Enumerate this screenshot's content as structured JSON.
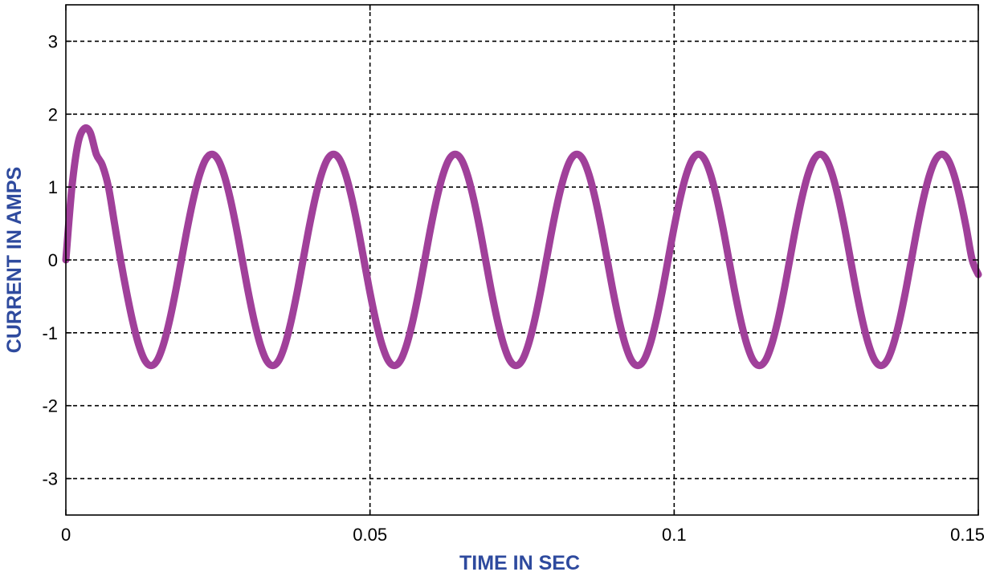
{
  "chart_data": {
    "type": "line",
    "xlabel": "TIME IN SEC",
    "ylabel": "CURRENT IN AMPS",
    "xlim": [
      0,
      0.15
    ],
    "ylim": [
      -3.5,
      3.5
    ],
    "xticks": [
      0,
      0.05,
      0.1,
      0.15
    ],
    "xtick_labels": [
      "0",
      "0.05",
      "0.1",
      "0.15"
    ],
    "yticks": [
      -3,
      -2,
      -1,
      0,
      1,
      2,
      3
    ],
    "ytick_labels": [
      "-3",
      "-2",
      "-1",
      "0",
      "1",
      "2",
      "3"
    ],
    "grid": true,
    "series": [
      {
        "x": [
          0,
          0.001,
          0.002,
          0.003,
          0.004,
          0.005,
          0.006,
          0.007,
          0.008,
          0.009,
          0.01,
          0.011,
          0.012,
          0.013,
          0.014,
          0.015,
          0.016,
          0.017,
          0.018,
          0.019,
          0.02,
          0.021,
          0.022,
          0.023,
          0.024,
          0.025,
          0.026,
          0.027,
          0.028,
          0.029,
          0.03,
          0.031,
          0.032,
          0.033,
          0.034,
          0.035,
          0.036,
          0.037,
          0.038,
          0.039,
          0.04,
          0.041,
          0.042,
          0.043,
          0.044,
          0.045,
          0.046,
          0.047,
          0.048,
          0.049,
          0.05,
          0.051,
          0.052,
          0.053,
          0.054,
          0.055,
          0.056,
          0.057,
          0.058,
          0.059,
          0.06,
          0.061,
          0.062,
          0.063,
          0.064,
          0.065,
          0.066,
          0.067,
          0.068,
          0.069,
          0.07,
          0.071,
          0.072,
          0.073,
          0.074,
          0.075,
          0.076,
          0.077,
          0.078,
          0.079,
          0.08,
          0.081,
          0.082,
          0.083,
          0.084,
          0.085,
          0.086,
          0.087,
          0.088,
          0.089,
          0.09,
          0.091,
          0.092,
          0.093,
          0.094,
          0.095,
          0.096,
          0.097,
          0.098,
          0.099,
          0.1,
          0.101,
          0.102,
          0.103,
          0.104,
          0.105,
          0.106,
          0.107,
          0.108,
          0.109,
          0.11,
          0.111,
          0.112,
          0.113,
          0.114,
          0.115,
          0.116,
          0.117,
          0.118,
          0.119,
          0.12,
          0.121,
          0.122,
          0.123,
          0.124,
          0.125,
          0.126,
          0.127,
          0.128,
          0.129,
          0.13,
          0.131,
          0.132,
          0.133,
          0.134,
          0.135,
          0.136,
          0.137,
          0.138,
          0.139,
          0.14,
          0.141,
          0.142,
          0.143,
          0.144,
          0.145,
          0.146,
          0.147,
          0.148,
          0.149,
          0.15
        ],
        "y": [
          0.0,
          1.0,
          1.6,
          1.8,
          1.75,
          1.45,
          1.3,
          1.0,
          0.5,
          0.0,
          -0.45,
          -0.85,
          -1.17,
          -1.38,
          -1.45,
          -1.38,
          -1.17,
          -0.85,
          -0.45,
          0.0,
          0.45,
          0.85,
          1.17,
          1.38,
          1.45,
          1.38,
          1.17,
          0.85,
          0.45,
          0.0,
          -0.45,
          -0.85,
          -1.17,
          -1.38,
          -1.45,
          -1.38,
          -1.17,
          -0.85,
          -0.45,
          0.0,
          0.45,
          0.85,
          1.17,
          1.38,
          1.45,
          1.38,
          1.17,
          0.85,
          0.45,
          0.0,
          -0.45,
          -0.85,
          -1.17,
          -1.38,
          -1.45,
          -1.38,
          -1.17,
          -0.85,
          -0.45,
          0.0,
          0.45,
          0.85,
          1.17,
          1.38,
          1.45,
          1.38,
          1.17,
          0.85,
          0.45,
          0.0,
          -0.45,
          -0.85,
          -1.17,
          -1.38,
          -1.45,
          -1.38,
          -1.17,
          -0.85,
          -0.45,
          0.0,
          0.45,
          0.85,
          1.17,
          1.38,
          1.45,
          1.38,
          1.17,
          0.85,
          0.45,
          0.0,
          -0.45,
          -0.85,
          -1.17,
          -1.38,
          -1.45,
          -1.38,
          -1.17,
          -0.85,
          -0.45,
          0.0,
          0.45,
          0.85,
          1.17,
          1.38,
          1.45,
          1.38,
          1.17,
          0.85,
          0.45,
          0.0,
          -0.45,
          -0.85,
          -1.17,
          -1.38,
          -1.45,
          -1.38,
          -1.17,
          -0.85,
          -0.45,
          0.0,
          0.45,
          0.85,
          1.17,
          1.38,
          1.45,
          1.38,
          1.17,
          0.85,
          0.45,
          0.0,
          -0.45,
          -0.85,
          -1.17,
          -1.38,
          -1.45,
          -1.38,
          -1.17,
          -0.85,
          -0.45,
          0.0,
          0.45,
          0.85,
          1.17,
          1.38,
          1.45,
          1.38,
          1.17,
          0.85,
          0.45,
          0.0,
          -0.2
        ],
        "color": "#a0409a"
      }
    ],
    "colors": {
      "axis_title": "#2e4a9e",
      "line": "#a0409a"
    }
  }
}
